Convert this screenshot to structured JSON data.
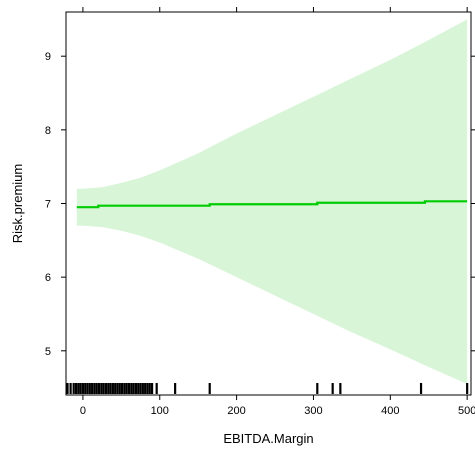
{
  "chart_data": {
    "type": "line",
    "title": "",
    "xlabel": "EBITDA.Margin",
    "ylabel": "Risk.premium",
    "xlim": [
      -22,
      505
    ],
    "ylim": [
      4.4,
      9.6
    ],
    "x_ticks": [
      0,
      100,
      200,
      300,
      400,
      500
    ],
    "y_ticks": [
      5,
      6,
      7,
      8,
      9
    ],
    "grid": false,
    "legend": "none",
    "series": [
      {
        "role": "fit",
        "points": [
          {
            "x": -8,
            "y": 6.95
          },
          {
            "x": 20,
            "y": 6.95
          },
          {
            "x": 20,
            "y": 6.97
          },
          {
            "x": 165,
            "y": 6.97
          },
          {
            "x": 165,
            "y": 6.99
          },
          {
            "x": 305,
            "y": 6.99
          },
          {
            "x": 305,
            "y": 7.01
          },
          {
            "x": 445,
            "y": 7.01
          },
          {
            "x": 445,
            "y": 7.03
          },
          {
            "x": 500,
            "y": 7.03
          }
        ]
      }
    ],
    "confidence_band": {
      "x": [
        -8,
        0,
        25,
        50,
        75,
        100,
        150,
        200,
        250,
        300,
        350,
        400,
        450,
        500
      ],
      "upper": [
        7.2,
        7.2,
        7.22,
        7.28,
        7.35,
        7.45,
        7.68,
        7.95,
        8.2,
        8.45,
        8.7,
        8.95,
        9.22,
        9.5
      ],
      "lower": [
        6.7,
        6.7,
        6.68,
        6.63,
        6.56,
        6.47,
        6.25,
        6.0,
        5.75,
        5.5,
        5.25,
        5.02,
        4.78,
        4.55
      ]
    },
    "rug_x": [
      -20,
      -16,
      -12,
      -9,
      -6,
      -3,
      0,
      3,
      6,
      9,
      12,
      15,
      18,
      21,
      24,
      27,
      30,
      33,
      36,
      39,
      42,
      45,
      48,
      51,
      54,
      57,
      60,
      63,
      66,
      69,
      72,
      75,
      78,
      81,
      84,
      87,
      90,
      96,
      120,
      165,
      305,
      325,
      335,
      440,
      500
    ],
    "colors": {
      "fit_line": "#00cc00",
      "band_fill": "#d8f5d8",
      "axis": "#000000"
    }
  }
}
